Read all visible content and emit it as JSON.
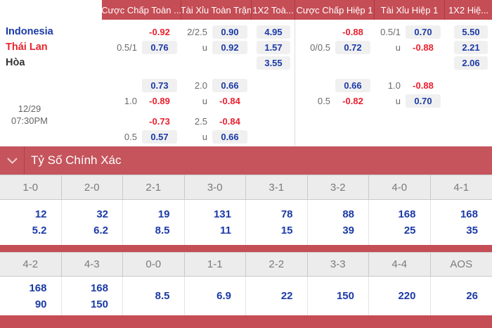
{
  "odds_table": {
    "headers": [
      "Cược Chấp Toàn ...",
      "Tài Xỉu Toàn Trận",
      "1X2 Toà...",
      "Cược Chấp Hiệp 1",
      "Tài Xỉu Hiệp 1",
      "1X2 Hiệ..."
    ],
    "datetime": {
      "date": "12/29",
      "time": "07:30PM"
    },
    "rows": [
      {
        "name": "Indonesia",
        "name_color": "blue",
        "cells": [
          {
            "hcp": "",
            "odds": "-0.92",
            "neg": true
          },
          {
            "hcp": "2/2.5",
            "odds": "0.90"
          },
          {
            "x12": true,
            "odds": "4.95"
          },
          {
            "hcp": "",
            "odds": "-0.88",
            "neg": true
          },
          {
            "hcp": "0.5/1",
            "odds": "0.70"
          },
          {
            "x12": true,
            "odds": "5.50"
          }
        ]
      },
      {
        "name": "Thái Lan",
        "name_color": "red",
        "cells": [
          {
            "hcp": "0.5/1",
            "odds": "0.76"
          },
          {
            "hcp": "u",
            "odds": "0.92"
          },
          {
            "x12": true,
            "odds": "1.57"
          },
          {
            "hcp": "0/0.5",
            "odds": "0.72"
          },
          {
            "hcp": "u",
            "odds": "-0.88",
            "neg": true
          },
          {
            "x12": true,
            "odds": "2.21"
          }
        ]
      },
      {
        "name": "Hòa",
        "name_color": "dark",
        "cells": [
          null,
          null,
          {
            "x12": true,
            "odds": "3.55"
          },
          null,
          null,
          {
            "x12": true,
            "odds": "2.06"
          }
        ]
      },
      {
        "gap": "gap",
        "cells": [
          {
            "hcp": "",
            "odds": "0.73"
          },
          {
            "hcp": "2.0",
            "odds": "0.66"
          },
          null,
          {
            "hcp": "",
            "odds": "0.66"
          },
          {
            "hcp": "1.0",
            "odds": "-0.88",
            "neg": true
          },
          null
        ]
      },
      {
        "cells": [
          {
            "hcp": "1.0",
            "odds": "-0.89",
            "neg": true
          },
          {
            "hcp": "u",
            "odds": "-0.84",
            "neg": true
          },
          null,
          {
            "hcp": "0.5",
            "odds": "-0.82",
            "neg": true
          },
          {
            "hcp": "u",
            "odds": "0.70"
          },
          null
        ]
      },
      {
        "gap": "gap2",
        "cells": [
          {
            "hcp": "",
            "odds": "-0.73",
            "neg": true
          },
          {
            "hcp": "2.5",
            "odds": "-0.84",
            "neg": true
          },
          null,
          null,
          null,
          null
        ]
      },
      {
        "cells": [
          {
            "hcp": "0.5",
            "odds": "0.57"
          },
          {
            "hcp": "u",
            "odds": "0.66"
          },
          null,
          null,
          null,
          null
        ]
      }
    ]
  },
  "section_bar": {
    "title": "Tỷ Số Chính Xác"
  },
  "score_grid": {
    "blocks": [
      {
        "headers": [
          "1-0",
          "2-0",
          "2-1",
          "3-0",
          "3-1",
          "3-2",
          "4-0",
          "4-1"
        ],
        "values": [
          [
            "12",
            "5.2"
          ],
          [
            "32",
            "6.2"
          ],
          [
            "19",
            "8.5"
          ],
          [
            "131",
            "11"
          ],
          [
            "78",
            "15"
          ],
          [
            "88",
            "39"
          ],
          [
            "168",
            "25"
          ],
          [
            "168",
            "35"
          ]
        ]
      },
      {
        "headers": [
          "4-2",
          "4-3",
          "0-0",
          "1-1",
          "2-2",
          "3-3",
          "4-4",
          "AOS"
        ],
        "values": [
          [
            "168",
            "90"
          ],
          [
            "168",
            "150"
          ],
          [
            "8.5"
          ],
          [
            "6.9"
          ],
          [
            "22"
          ],
          [
            "150"
          ],
          [
            "220"
          ],
          [
            "26"
          ]
        ]
      }
    ]
  },
  "colors": {
    "header_red": "#c54d55",
    "bar_red": "#c5545c",
    "odds_blue": "#1b3aa6",
    "odds_red": "#ea1f2e",
    "pill_bg": "#f0f0f0"
  }
}
